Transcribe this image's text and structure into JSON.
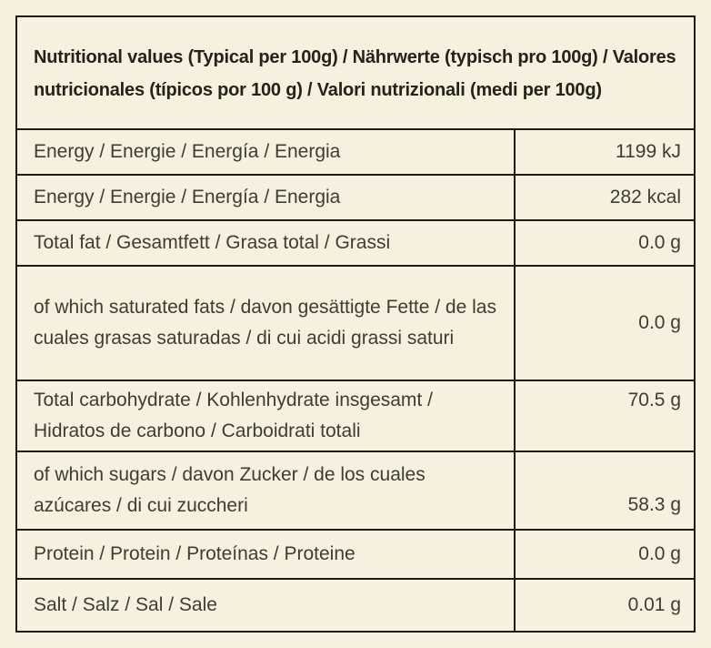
{
  "theme": {
    "background": "#f5f1de",
    "border_color": "#1f1d13",
    "text_color": "#3e3c33",
    "heading_color": "#24221a"
  },
  "table": {
    "header": "Nutritional values (Typical per 100g) / Nährwerte (typisch pro 100g) / Valores nutricionales (típicos por 100 g) / Valori nutrizionali (medi per 100g)",
    "rows": [
      {
        "label": "Energy / Energie / Energía / Energia",
        "value": "1199 kJ"
      },
      {
        "label": "Energy / Energie / Energía / Energia",
        "value": "282 kcal"
      },
      {
        "label": "Total fat / Gesamtfett / Grasa total / Grassi",
        "value": "0.0 g"
      },
      {
        "label": "of which saturated fats / davon gesättigte Fette / de las cuales grasas saturadas / di cui acidi grassi saturi",
        "value": "0.0 g"
      },
      {
        "label": "Total carbohydrate / Kohlenhydrate insgesamt / Hidratos de carbono / Carboidrati totali",
        "value": "70.5 g"
      },
      {
        "label": "of which sugars / davon Zucker / de los cuales azúcares / di cui zuccheri",
        "value": "58.3 g"
      },
      {
        "label": "Protein / Protein / Proteínas / Proteine",
        "value": "0.0 g"
      },
      {
        "label": "Salt / Salz / Sal / Sale",
        "value": "0.01 g"
      }
    ]
  }
}
